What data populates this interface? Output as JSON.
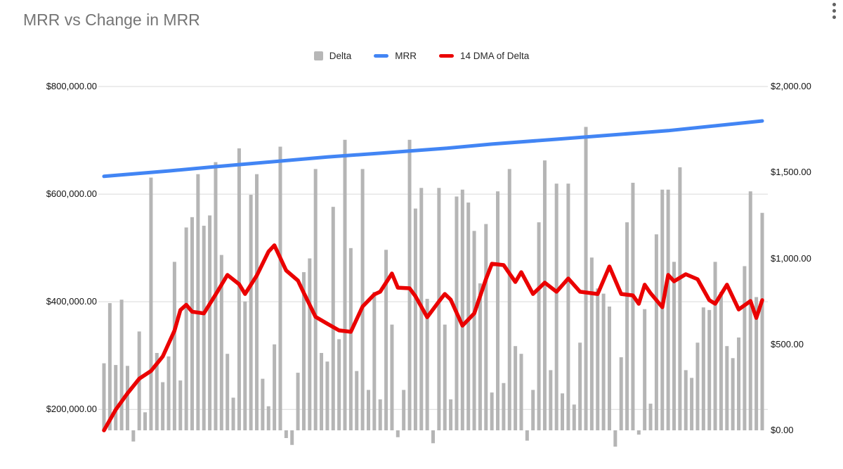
{
  "title": "MRR vs Change in MRR",
  "menu": {
    "icon": "kebab-menu-icon"
  },
  "legend": {
    "items": [
      {
        "label": "Delta",
        "color": "#b7b7b7",
        "shape": "square"
      },
      {
        "label": "MRR",
        "color": "#4285f4",
        "shape": "line"
      },
      {
        "label": "14 DMA of Delta",
        "color": "#ea0000",
        "shape": "line"
      }
    ]
  },
  "axes": {
    "left": {
      "labels": [
        "$800,000.00",
        "$600,000.00",
        "$400,000.00",
        "$200,000.00"
      ]
    },
    "right": {
      "labels": [
        "$2,000.00",
        "$1,500.00",
        "$1,000.00",
        "$500.00",
        "$0.00"
      ]
    }
  },
  "chart_data": {
    "type": "combo",
    "title": "MRR vs Change in MRR",
    "x_axis_labels_visible": false,
    "grid": "horizontal",
    "legend_position": "top",
    "left_axis_ticks": [
      800000,
      600000,
      400000,
      200000
    ],
    "right_axis_ticks": [
      2000,
      1500,
      1000,
      500,
      0
    ],
    "left_ylim": [
      161000,
      800000
    ],
    "right_ylim": [
      0,
      2000
    ],
    "gridline_values_left": [
      800000,
      600000,
      400000,
      200000
    ],
    "colors": {
      "grid": "#d9d9d9",
      "bar": "#b5b5b5",
      "mrr": "#4285f4",
      "dma": "#ea0000"
    },
    "series": [
      {
        "name": "Delta",
        "type": "bar",
        "axis": "right",
        "color": "#b5b5b5",
        "values": [
          390,
          740,
          380,
          760,
          375,
          -65,
          575,
          105,
          1470,
          450,
          280,
          430,
          980,
          290,
          1180,
          1240,
          1490,
          1190,
          1250,
          1560,
          1020,
          445,
          190,
          1640,
          750,
          1370,
          1490,
          300,
          140,
          500,
          1650,
          -45,
          -85,
          335,
          920,
          1000,
          1520,
          450,
          400,
          1300,
          530,
          1690,
          1060,
          345,
          1520,
          235,
          805,
          180,
          1050,
          615,
          -40,
          235,
          1690,
          1290,
          1410,
          765,
          -75,
          1410,
          615,
          180,
          1360,
          1400,
          1325,
          1160,
          855,
          1200,
          220,
          1390,
          275,
          1520,
          490,
          445,
          -60,
          235,
          1210,
          1570,
          350,
          1435,
          215,
          1435,
          150,
          510,
          1765,
          1005,
          825,
          795,
          720,
          -95,
          425,
          1210,
          1440,
          -25,
          705,
          155,
          1140,
          1400,
          1400,
          980,
          1530,
          350,
          305,
          510,
          715,
          700,
          980,
          805,
          490,
          420,
          540,
          955,
          1390,
          775,
          1265
        ]
      },
      {
        "name": "MRR",
        "type": "line",
        "axis": "left",
        "color": "#4285f4",
        "anchors": [
          [
            0,
            633000
          ],
          [
            11,
            643000
          ],
          [
            18,
            650000
          ],
          [
            38,
            669000
          ],
          [
            47,
            676000
          ],
          [
            58,
            685000
          ],
          [
            66,
            693000
          ],
          [
            77,
            702000
          ],
          [
            96,
            718000
          ],
          [
            112,
            736000
          ]
        ]
      },
      {
        "name": "14 DMA of Delta",
        "type": "line",
        "axis": "right",
        "color": "#ea0000",
        "anchors": [
          [
            0,
            0
          ],
          [
            2,
            120
          ],
          [
            4,
            215
          ],
          [
            6,
            300
          ],
          [
            8,
            345
          ],
          [
            10,
            430
          ],
          [
            12,
            580
          ],
          [
            13,
            700
          ],
          [
            14,
            730
          ],
          [
            15,
            690
          ],
          [
            17,
            680
          ],
          [
            19,
            790
          ],
          [
            21,
            904
          ],
          [
            23,
            850
          ],
          [
            24,
            793
          ],
          [
            26,
            900
          ],
          [
            28,
            1040
          ],
          [
            29,
            1076
          ],
          [
            31,
            930
          ],
          [
            33,
            871
          ],
          [
            34,
            800
          ],
          [
            36,
            660
          ],
          [
            38,
            620
          ],
          [
            40,
            581
          ],
          [
            42,
            573
          ],
          [
            44,
            720
          ],
          [
            46,
            790
          ],
          [
            47,
            806
          ],
          [
            49,
            912
          ],
          [
            50,
            830
          ],
          [
            52,
            826
          ],
          [
            53,
            780
          ],
          [
            55,
            658
          ],
          [
            57,
            750
          ],
          [
            58,
            793
          ],
          [
            59,
            760
          ],
          [
            61,
            609
          ],
          [
            63,
            680
          ],
          [
            65,
            880
          ],
          [
            66,
            969
          ],
          [
            68,
            961
          ],
          [
            70,
            863
          ],
          [
            71,
            920
          ],
          [
            73,
            793
          ],
          [
            75,
            859
          ],
          [
            77,
            806
          ],
          [
            79,
            883
          ],
          [
            81,
            806
          ],
          [
            84,
            793
          ],
          [
            86,
            953
          ],
          [
            88,
            793
          ],
          [
            90,
            785
          ],
          [
            91,
            736
          ],
          [
            92,
            847
          ],
          [
            93,
            798
          ],
          [
            95,
            716
          ],
          [
            96,
            904
          ],
          [
            97,
            867
          ],
          [
            99,
            908
          ],
          [
            101,
            879
          ],
          [
            103,
            757
          ],
          [
            104,
            736
          ],
          [
            106,
            847
          ],
          [
            108,
            703
          ],
          [
            110,
            752
          ],
          [
            111,
            654
          ],
          [
            112,
            757
          ]
        ]
      }
    ]
  }
}
